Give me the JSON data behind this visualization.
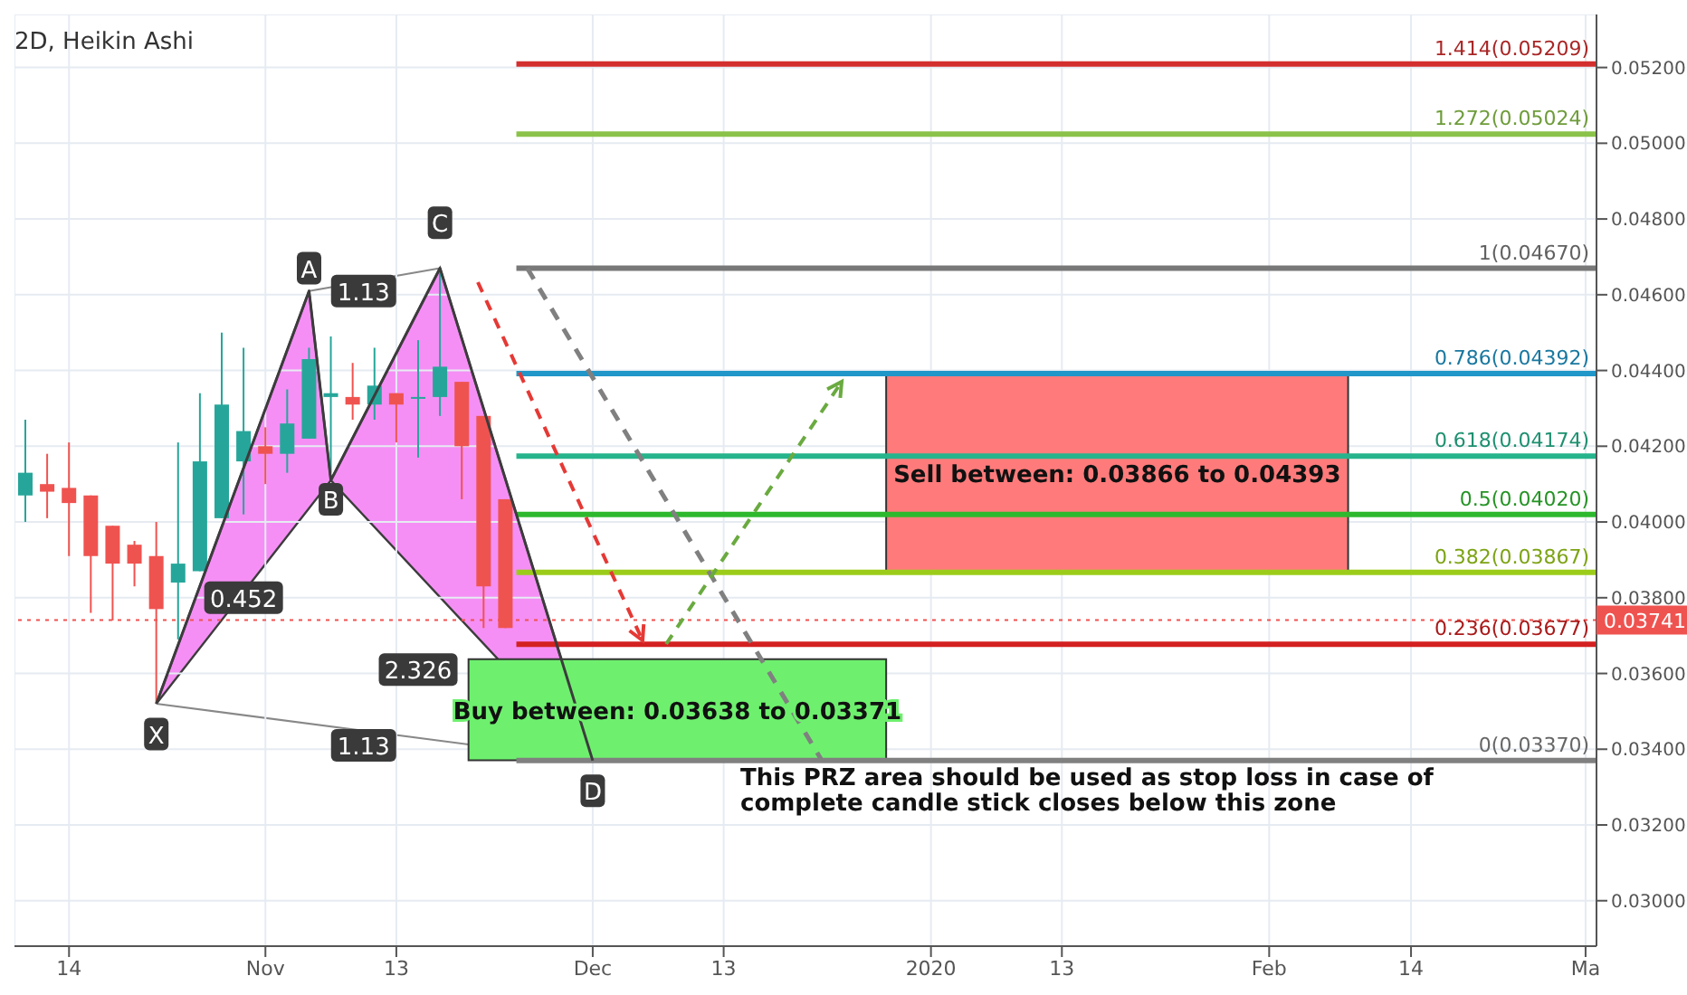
{
  "chart_data": {
    "type": "candlestick",
    "title": "2D, Heikin Ashi",
    "x": [
      "2019-10-10",
      "2019-10-12",
      "2019-10-14",
      "2019-10-16",
      "2019-10-18",
      "2019-10-20",
      "2019-10-22",
      "2019-10-24",
      "2019-10-26",
      "2019-10-28",
      "2019-10-30",
      "2019-11-01",
      "2019-11-03",
      "2019-11-05",
      "2019-11-07",
      "2019-11-09",
      "2019-11-11",
      "2019-11-13",
      "2019-11-15",
      "2019-11-17",
      "2019-11-19",
      "2019-11-21",
      "2019-11-23"
    ],
    "ohlc": [
      [
        0.0407,
        0.0427,
        0.04,
        0.0413
      ],
      [
        0.041,
        0.0418,
        0.0401,
        0.0408
      ],
      [
        0.0409,
        0.0421,
        0.0391,
        0.0405
      ],
      [
        0.0407,
        0.0407,
        0.0376,
        0.0391
      ],
      [
        0.0399,
        0.0399,
        0.0374,
        0.0389
      ],
      [
        0.0394,
        0.0395,
        0.0383,
        0.0389
      ],
      [
        0.0391,
        0.04,
        0.0352,
        0.0377
      ],
      [
        0.0384,
        0.0421,
        0.0369,
        0.0389
      ],
      [
        0.0387,
        0.0434,
        0.0387,
        0.0416
      ],
      [
        0.0401,
        0.045,
        0.0401,
        0.0431
      ],
      [
        0.0416,
        0.0446,
        0.0402,
        0.0424
      ],
      [
        0.042,
        0.0425,
        0.041,
        0.0418
      ],
      [
        0.0418,
        0.0435,
        0.0413,
        0.0426
      ],
      [
        0.0422,
        0.0446,
        0.0422,
        0.0443
      ],
      [
        0.0433,
        0.0449,
        0.0413,
        0.0434
      ],
      [
        0.0433,
        0.0442,
        0.0427,
        0.0431
      ],
      [
        0.0431,
        0.0446,
        0.0427,
        0.0436
      ],
      [
        0.0434,
        0.0434,
        0.0421,
        0.0431
      ],
      [
        0.0433,
        0.0448,
        0.0417,
        0.0433
      ],
      [
        0.0433,
        0.0466,
        0.0428,
        0.0441
      ],
      [
        0.0437,
        0.0437,
        0.0406,
        0.042
      ],
      [
        0.0428,
        0.0428,
        0.0372,
        0.0383
      ],
      [
        0.0406,
        0.0406,
        0.0372,
        0.0372
      ]
    ],
    "colors": [
      "#26a69a",
      "#ef5350",
      "#ef5350",
      "#ef5350",
      "#ef5350",
      "#ef5350",
      "#ef5350",
      "#26a69a",
      "#26a69a",
      "#26a69a",
      "#26a69a",
      "#ef5350",
      "#26a69a",
      "#26a69a",
      "#26a69a",
      "#ef5350",
      "#26a69a",
      "#ef5350",
      "#26a69a",
      "#26a69a",
      "#ef5350",
      "#ef5350",
      "#ef5350"
    ],
    "series": [
      {
        "type": "line",
        "color": "#3c3c3c",
        "x": [
          "2019-10-22",
          "2019-11-05",
          "2019-11-07",
          "2019-11-17",
          "2019-12-01"
        ],
        "values": [
          0.0352,
          0.0461,
          0.0411,
          0.0467,
          0.0337
        ]
      },
      {
        "type": "line",
        "color": "#808080",
        "line_style": "dashed",
        "x": [
          "2019-11-25",
          "2019-12-22"
        ],
        "values": [
          0.0467,
          0.0337
        ]
      }
    ],
    "bands": [
      {
        "axis": "y",
        "from": 0.03866,
        "to": 0.04393,
        "label": "Sell between: 0.03866 to 0.04393",
        "color": "#ff7b7b"
      },
      {
        "axis": "y",
        "from": 0.03371,
        "to": 0.03638,
        "label": "Buy between: 0.03638 to 0.03371",
        "color": "#6ef06e"
      }
    ],
    "ref_lines": [
      {
        "axis": "y",
        "value": 0.05209,
        "label": "1.414(0.05209)",
        "color": "#d32f2f"
      },
      {
        "axis": "y",
        "value": 0.05024,
        "label": "1.272(0.05024)",
        "color": "#8bc34a"
      },
      {
        "axis": "y",
        "value": 0.0467,
        "label": "1(0.04670)",
        "color": "#787878"
      },
      {
        "axis": "y",
        "value": 0.04392,
        "label": "0.786(0.04392)",
        "color": "#2196c8"
      },
      {
        "axis": "y",
        "value": 0.04174,
        "label": "0.618(0.04174)",
        "color": "#26b48c"
      },
      {
        "axis": "y",
        "value": 0.0402,
        "label": "0.5(0.04020)",
        "color": "#2eb82e"
      },
      {
        "axis": "y",
        "value": 0.03867,
        "label": "0.382(0.03867)",
        "color": "#9ccc1a"
      },
      {
        "axis": "y",
        "value": 0.03677,
        "label": "0.236(0.03677)",
        "color": "#d32020"
      },
      {
        "axis": "y",
        "value": 0.0337,
        "label": "0(0.03370)",
        "color": "#808080"
      },
      {
        "axis": "y",
        "value": 0.03741,
        "label": "0.03741",
        "color": "#ef5350",
        "line_style": "dotted"
      }
    ],
    "annotations": [
      {
        "text": "X",
        "x": "2019-10-22",
        "y": 0.0344
      },
      {
        "text": "A",
        "x": "2019-11-05",
        "y": 0.0467
      },
      {
        "text": "B",
        "x": "2019-11-07",
        "y": 0.0406
      },
      {
        "text": "C",
        "x": "2019-11-17",
        "y": 0.0479
      },
      {
        "text": "D",
        "x": "2019-12-01",
        "y": 0.0329
      },
      {
        "text": "1.13",
        "x": "2019-11-10",
        "y": 0.0461
      },
      {
        "text": "0.452",
        "x": "2019-10-30",
        "y": 0.038
      },
      {
        "text": "2.326",
        "x": "2019-11-15",
        "y": 0.0361
      },
      {
        "text": "1.13",
        "x": "2019-11-10",
        "y": 0.0341
      },
      "This PRZ area should be used as stop loss in case of complete candle stick closes below this zone"
    ],
    "xlim": [
      "2019-10-09",
      "2020-03-02"
    ],
    "xticks": [
      {
        "value": "2019-10-14",
        "label": "14"
      },
      {
        "value": "2019-11-01",
        "label": "Nov"
      },
      {
        "value": "2019-11-13",
        "label": "13"
      },
      {
        "value": "2019-12-01",
        "label": "Dec"
      },
      {
        "value": "2019-12-13",
        "label": "13"
      },
      {
        "value": "2020-01-01",
        "label": "2020"
      },
      {
        "value": "2020-01-13",
        "label": "13"
      },
      {
        "value": "2020-02-01",
        "label": "Feb"
      },
      {
        "value": "2020-02-14",
        "label": "14"
      },
      {
        "value": "2020-03-01",
        "label": "Ma"
      }
    ],
    "ylim": [
      0.0288,
      0.0534
    ],
    "yticks": [
      {
        "value": 0.03,
        "label": "0.03000"
      },
      {
        "value": 0.032,
        "label": "0.03200"
      },
      {
        "value": 0.034,
        "label": "0.03400"
      },
      {
        "value": 0.036,
        "label": "0.03600"
      },
      {
        "value": 0.038,
        "label": "0.03800"
      },
      {
        "value": 0.04,
        "label": "0.04000"
      },
      {
        "value": 0.042,
        "label": "0.04200"
      },
      {
        "value": 0.044,
        "label": "0.04400"
      },
      {
        "value": 0.046,
        "label": "0.04600"
      },
      {
        "value": 0.048,
        "label": "0.04800"
      },
      {
        "value": 0.05,
        "label": "0.05000"
      },
      {
        "value": 0.052,
        "label": "0.05200"
      }
    ],
    "grid": true
  }
}
